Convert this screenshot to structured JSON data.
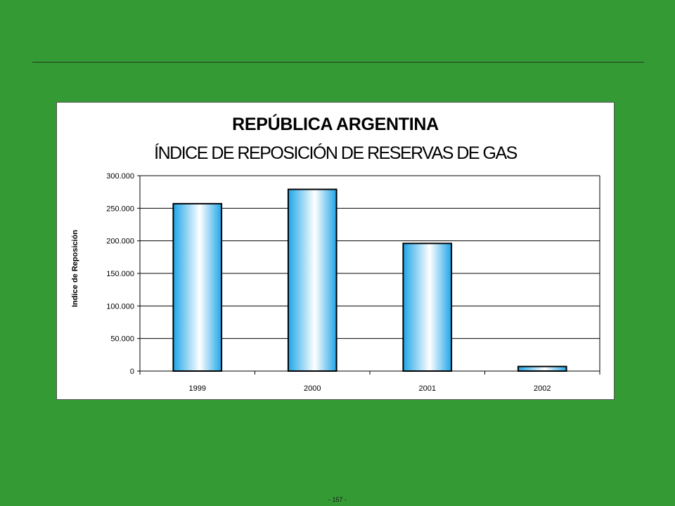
{
  "page": {
    "number": "- 157 -"
  },
  "colors": {
    "background": "#349a34",
    "bar_edge": "#1fa6e8",
    "bar_center": "#ffffff"
  },
  "chart_data": {
    "type": "bar",
    "title": "REPÚBLICA ARGENTINA",
    "subtitle": "ÍNDICE DE REPOSICIÓN DE RESERVAS DE GAS",
    "xlabel": "",
    "ylabel": "Indice de Reposición",
    "categories": [
      "1999",
      "2000",
      "2001",
      "2002"
    ],
    "values": [
      257000,
      279000,
      196000,
      7000
    ],
    "ylim": [
      0,
      300000
    ],
    "yticks": [
      0,
      50000,
      100000,
      150000,
      200000,
      250000,
      300000
    ],
    "ytick_labels": [
      "0",
      "50.000",
      "100.000",
      "150.000",
      "200.000",
      "250.000",
      "300.000"
    ],
    "grid": true,
    "legend": "none"
  }
}
